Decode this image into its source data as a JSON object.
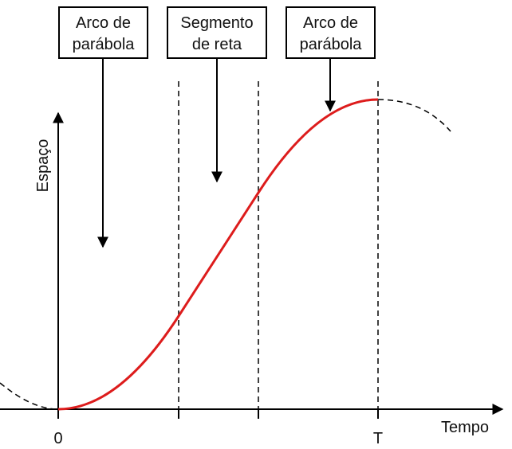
{
  "axes": {
    "y_label": "Espaço",
    "x_label": "Tempo",
    "origin_label": "0",
    "end_label": "T"
  },
  "boxes": [
    {
      "line1": "Arco de",
      "line2": "parábola"
    },
    {
      "line1": "Segmento",
      "line2": "de reta"
    },
    {
      "line1": "Arco de",
      "line2": "parábola"
    }
  ],
  "colors": {
    "curve": "#dd1c1c",
    "axes": "#000000",
    "dashed": "#000000"
  }
}
